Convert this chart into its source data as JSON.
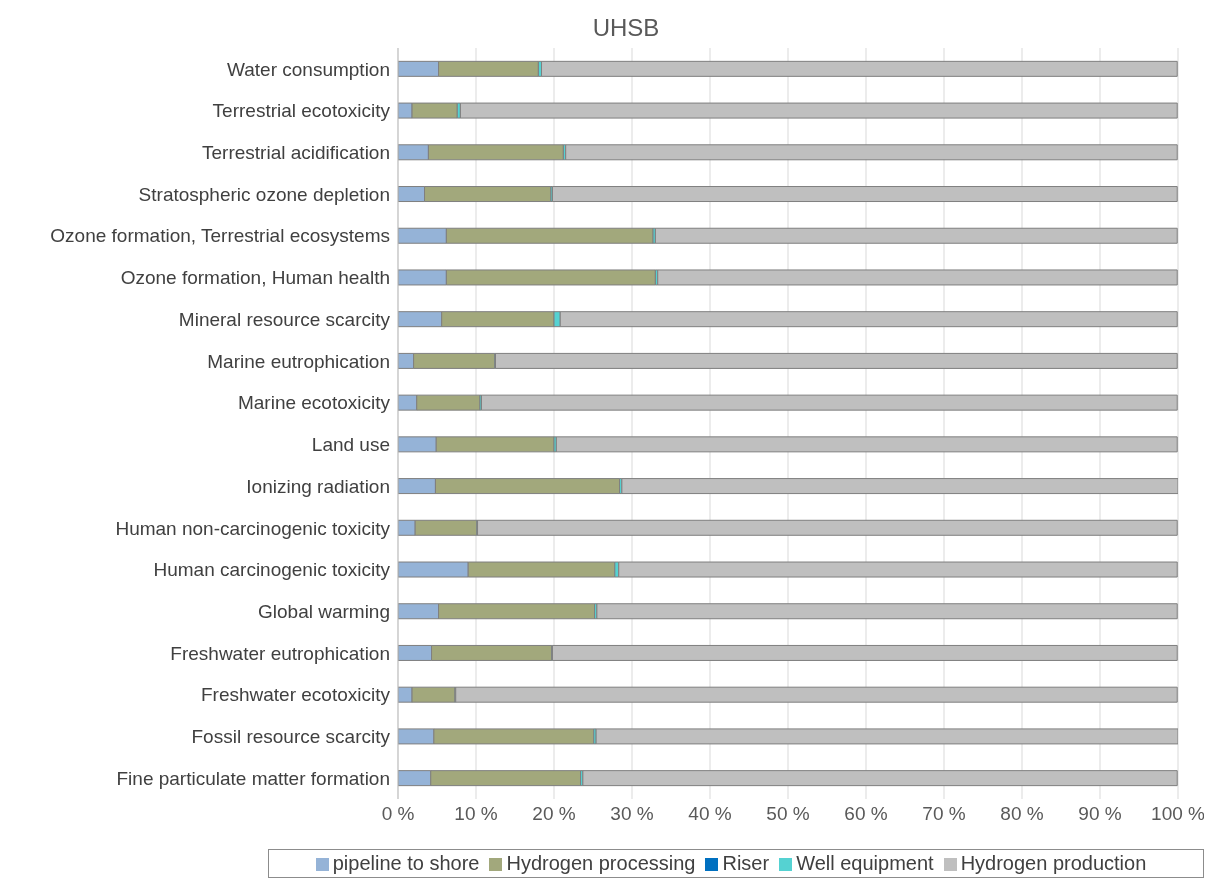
{
  "chart_data": {
    "type": "bar",
    "orientation": "horizontal",
    "stacked": true,
    "title": "UHSB",
    "categories": [
      "Water consumption",
      "Terrestrial ecotoxicity",
      "Terrestrial acidification",
      "Stratospheric ozone depletion",
      "Ozone formation, Terrestrial ecosystems",
      "Ozone formation, Human health",
      "Mineral resource scarcity",
      "Marine eutrophication",
      "Marine ecotoxicity",
      "Land use",
      "Ionizing radiation",
      "Human non-carcinogenic toxicity",
      "Human carcinogenic toxicity",
      "Global warming",
      "Freshwater eutrophication",
      "Freshwater ecotoxicity",
      "Fossil resource scarcity",
      "Fine particulate matter formation"
    ],
    "series": [
      {
        "name": "pipeline to shore",
        "color": "#95b3d7",
        "values": [
          5.2,
          1.8,
          3.9,
          3.4,
          6.2,
          6.2,
          5.6,
          2.0,
          2.4,
          4.9,
          4.8,
          2.2,
          9.0,
          5.2,
          4.3,
          1.8,
          4.6,
          4.2
        ]
      },
      {
        "name": "Hydrogen processing",
        "color": "#a2a87c",
        "values": [
          12.8,
          5.8,
          17.3,
          16.2,
          26.5,
          26.8,
          14.4,
          10.4,
          8.1,
          15.1,
          23.6,
          7.9,
          18.8,
          20.0,
          15.4,
          5.5,
          20.5,
          19.2
        ]
      },
      {
        "name": "Riser",
        "color": "#0070c0",
        "values": [
          null,
          null,
          null,
          null,
          null,
          null,
          null,
          null,
          null,
          null,
          null,
          null,
          null,
          null,
          null,
          null,
          null,
          null
        ]
      },
      {
        "name": "Well equipment",
        "color": "#55d2d2",
        "values": [
          0.4,
          0.4,
          0.3,
          0.2,
          0.3,
          0.3,
          0.8,
          0.1,
          0.2,
          0.3,
          0.3,
          0.1,
          0.5,
          0.3,
          0.1,
          0.1,
          0.3,
          0.3
        ]
      },
      {
        "name": "Hydrogen production",
        "color": "#bfbfbf",
        "values": [
          81.5,
          91.9,
          78.4,
          80.1,
          66.9,
          66.6,
          79.1,
          87.4,
          89.2,
          79.6,
          71.3,
          89.7,
          71.6,
          74.4,
          80.1,
          92.5,
          74.6,
          76.2
        ]
      }
    ],
    "xlim": [
      0,
      100
    ],
    "xticks": [
      {
        "value": 0,
        "label": "0 %"
      },
      {
        "value": 10,
        "label": "10 %"
      },
      {
        "value": 20,
        "label": "20 %"
      },
      {
        "value": 30,
        "label": "30 %"
      },
      {
        "value": 40,
        "label": "40 %"
      },
      {
        "value": 50,
        "label": "50 %"
      },
      {
        "value": 60,
        "label": "60 %"
      },
      {
        "value": 70,
        "label": "70 %"
      },
      {
        "value": 80,
        "label": "80 %"
      },
      {
        "value": 90,
        "label": "90 %"
      },
      {
        "value": 100,
        "label": "100 %"
      }
    ],
    "grid": "x",
    "legend": "bottom"
  }
}
